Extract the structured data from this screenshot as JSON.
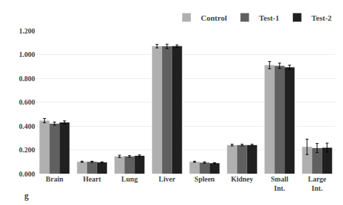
{
  "chart_data": {
    "type": "bar",
    "categories": [
      "Brain",
      "Heart",
      "Lung",
      "Liver",
      "Spleen",
      "Kidney",
      "Small\nInt.",
      "Large\nInt."
    ],
    "series": [
      {
        "name": "Control",
        "color": "#b0b0b0",
        "values": [
          0.445,
          0.1,
          0.145,
          1.07,
          0.1,
          0.24,
          0.91,
          0.225
        ],
        "errors": [
          0.018,
          0.005,
          0.01,
          0.015,
          0.005,
          0.007,
          0.03,
          0.065
        ]
      },
      {
        "name": "Test-1",
        "color": "#606060",
        "values": [
          0.42,
          0.1,
          0.145,
          1.068,
          0.093,
          0.24,
          0.905,
          0.215
        ],
        "errors": [
          0.013,
          0.005,
          0.007,
          0.018,
          0.005,
          0.007,
          0.022,
          0.038
        ]
      },
      {
        "name": "Test-2",
        "color": "#202020",
        "values": [
          0.43,
          0.095,
          0.15,
          1.07,
          0.088,
          0.24,
          0.893,
          0.218
        ],
        "errors": [
          0.013,
          0.005,
          0.007,
          0.01,
          0.004,
          0.007,
          0.018,
          0.038
        ]
      }
    ],
    "ylim": [
      0,
      1.2
    ],
    "yticks": [
      {
        "value": 0,
        "label": "0.000"
      },
      {
        "value": 0.2,
        "label": "0.200"
      },
      {
        "value": 0.4,
        "label": "0.400"
      },
      {
        "value": 0.6,
        "label": "0.600"
      },
      {
        "value": 0.8,
        "label": "0.800"
      },
      {
        "value": 1.0,
        "label": "1.000"
      },
      {
        "value": 1.2,
        "label": "1.200"
      }
    ],
    "grid": true,
    "legend": "upper right",
    "annotations": [
      "g"
    ]
  }
}
